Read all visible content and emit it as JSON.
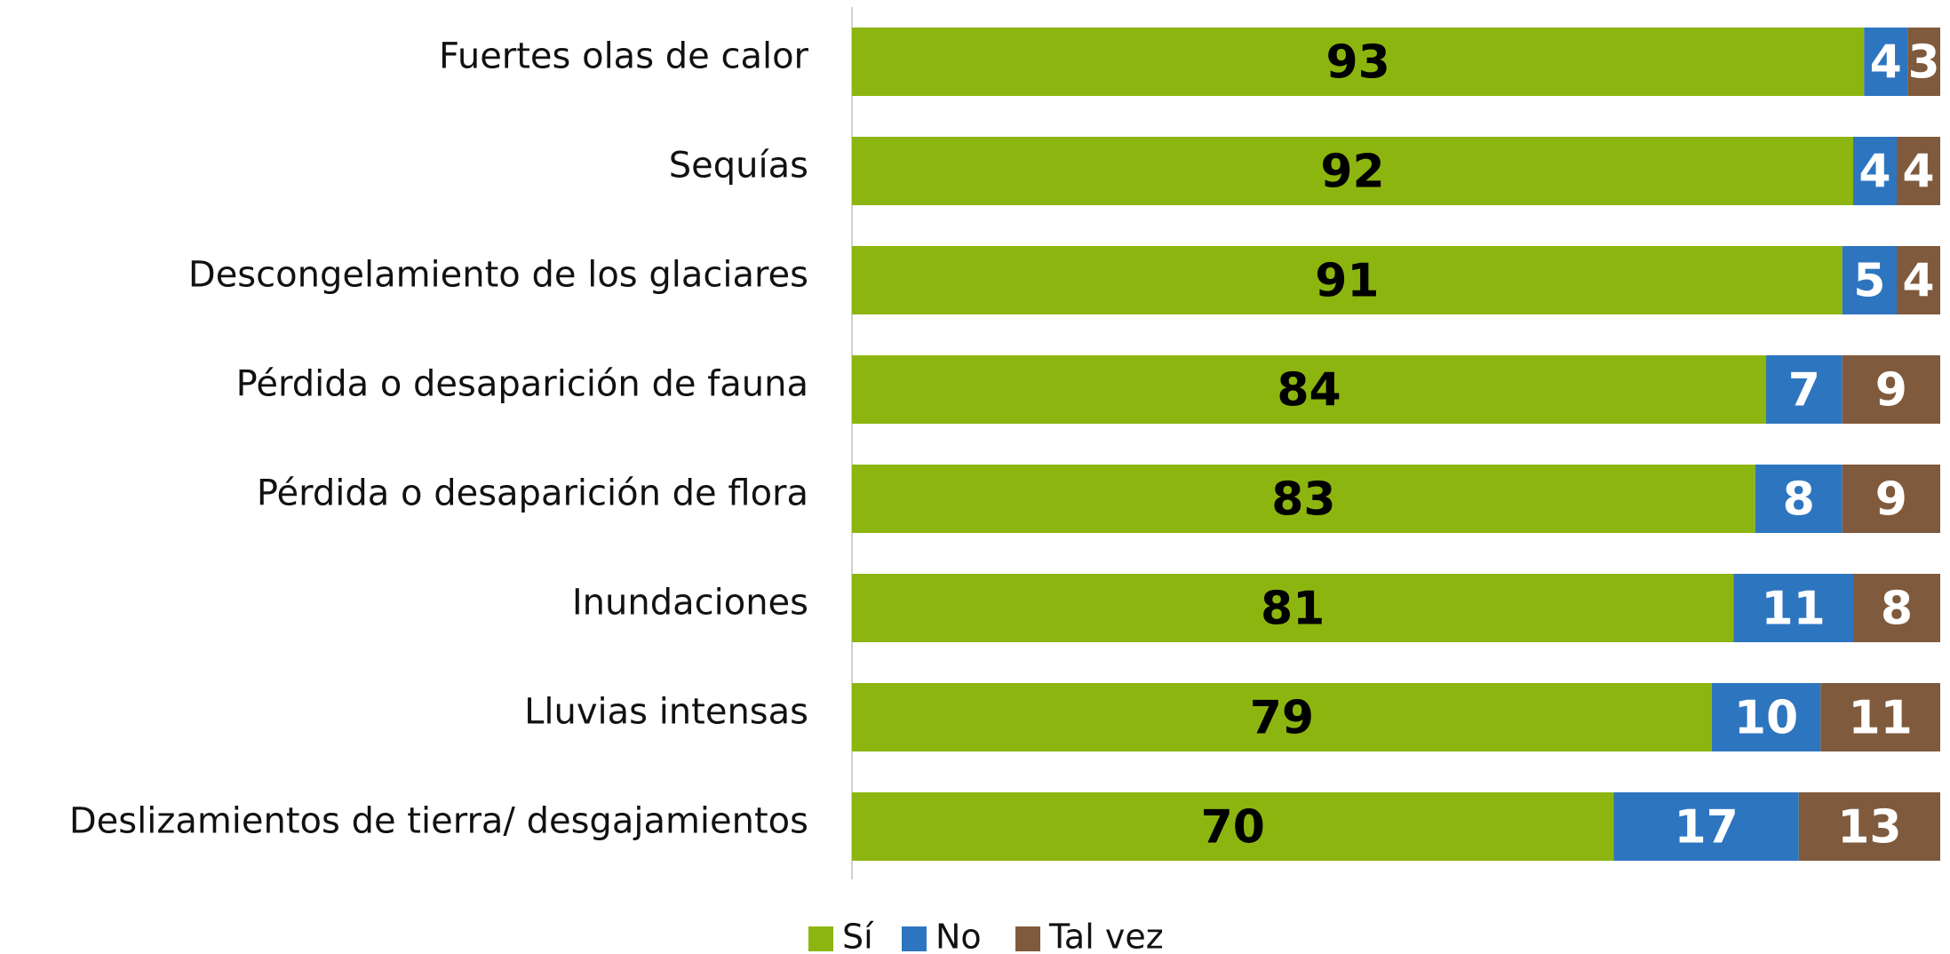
{
  "chart_data": {
    "type": "stacked-bar-horizontal",
    "categories": [
      "Fuertes olas de calor",
      "Sequías",
      "Descongelamiento de los glaciares",
      "Pérdida o desaparición de fauna",
      "Pérdida o desaparición de flora",
      "Inundaciones",
      "Lluvias intensas",
      "Deslizamientos de tierra/ desgajamientos"
    ],
    "series": [
      {
        "name": "Sí",
        "color": "#8db510",
        "label_color": "#000000",
        "values": [
          93,
          92,
          91,
          84,
          83,
          81,
          79,
          70
        ]
      },
      {
        "name": "No",
        "color": "#2e75c0",
        "label_color": "#ffffff",
        "values": [
          4,
          4,
          5,
          7,
          8,
          11,
          10,
          17
        ]
      },
      {
        "name": "Tal vez",
        "color": "#7f5a3c",
        "label_color": "#ffffff",
        "values": [
          3,
          4,
          4,
          9,
          9,
          8,
          11,
          13
        ]
      }
    ],
    "xlim": [
      0,
      100
    ],
    "legend": "bottom"
  }
}
